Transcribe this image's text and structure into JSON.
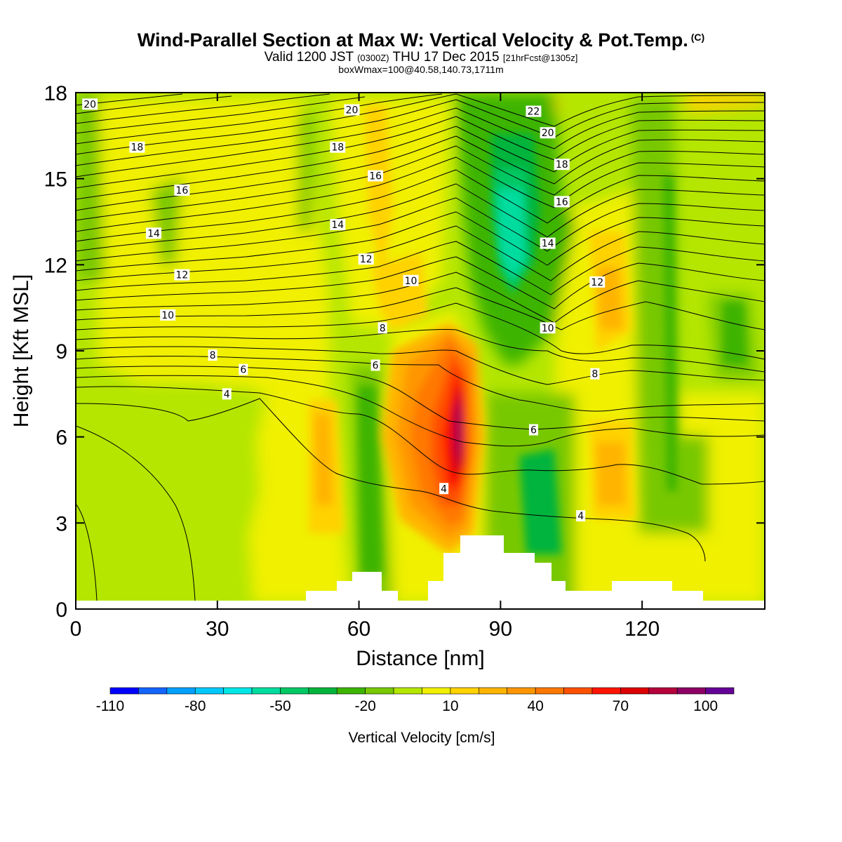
{
  "header": {
    "title": "Wind-Parallel Section at Max W: Vertical Velocity & Pot.Temp.",
    "copyright": "(C)",
    "valid_prefix": "Valid 1200 JST",
    "valid_utc": "(0300Z)",
    "valid_date": "THU 17 Dec 2015",
    "forecast": "[21hrFcst@1305z]",
    "box_info": "boxWmax=100@40.58,140.73,1711m"
  },
  "colorbar": {
    "label": "Vertical Velocity [cm/s]",
    "tick_labels": [
      "-110",
      "-80",
      "-50",
      "-20",
      "10",
      "40",
      "70",
      "100"
    ],
    "colors": [
      "#0000ff",
      "#1464ff",
      "#00a0ff",
      "#00c8ff",
      "#00e6e6",
      "#00dca0",
      "#00c864",
      "#00b43c",
      "#3cb400",
      "#78c800",
      "#b4e600",
      "#f0f000",
      "#ffd200",
      "#ffb400",
      "#ff9600",
      "#ff7800",
      "#ff5000",
      "#ff1400",
      "#dc0000",
      "#b4003c",
      "#8c0064",
      "#640096"
    ]
  },
  "chart_data": {
    "type": "heatmap",
    "title": "Wind-Parallel Section at Max W: Vertical Velocity & Pot.Temp.",
    "xlabel": "Distance [nm]",
    "ylabel": "Height [Kft MSL]",
    "xlim": [
      0,
      146
    ],
    "ylim": [
      0,
      18
    ],
    "x_ticks": [
      0,
      30,
      60,
      90,
      120
    ],
    "y_ticks": [
      0,
      3,
      6,
      9,
      12,
      15,
      18
    ],
    "x_tick_labels": [
      "0",
      "30",
      "60",
      "90",
      "120"
    ],
    "y_tick_labels": [
      "0",
      "3",
      "6",
      "9",
      "12",
      "15",
      "18"
    ],
    "fill_variable": "Vertical Velocity [cm/s]",
    "fill_levels": [
      -110,
      -100,
      -90,
      -80,
      -70,
      -60,
      -50,
      -40,
      -30,
      -20,
      -10,
      0,
      10,
      20,
      30,
      40,
      50,
      60,
      70,
      80,
      90,
      100,
      110
    ],
    "max_value": 100,
    "max_location": {
      "x": 80.5,
      "y": 7
    },
    "contour_variable": "Pot.Temp. (C)",
    "contour_levels": [
      4,
      6,
      8,
      10,
      12,
      14,
      16,
      18,
      20,
      22
    ],
    "contour_labels": [
      {
        "text": "20",
        "x": 3,
        "y": 17.6
      },
      {
        "text": "20",
        "x": 58.5,
        "y": 17.4
      },
      {
        "text": "22",
        "x": 97,
        "y": 17.35
      },
      {
        "text": "18",
        "x": 13,
        "y": 16.1
      },
      {
        "text": "18",
        "x": 55.5,
        "y": 16.1
      },
      {
        "text": "20",
        "x": 100,
        "y": 16.6
      },
      {
        "text": "18",
        "x": 103,
        "y": 15.5
      },
      {
        "text": "16",
        "x": 22.5,
        "y": 14.6
      },
      {
        "text": "16",
        "x": 63.5,
        "y": 15.1
      },
      {
        "text": "16",
        "x": 103,
        "y": 14.2
      },
      {
        "text": "14",
        "x": 16.5,
        "y": 13.1
      },
      {
        "text": "14",
        "x": 55.5,
        "y": 13.4
      },
      {
        "text": "14",
        "x": 100,
        "y": 12.75
      },
      {
        "text": "12",
        "x": 22.5,
        "y": 11.65
      },
      {
        "text": "12",
        "x": 61.5,
        "y": 12.2
      },
      {
        "text": "12",
        "x": 110.5,
        "y": 11.4
      },
      {
        "text": "10",
        "x": 19.5,
        "y": 10.25
      },
      {
        "text": "10",
        "x": 71,
        "y": 11.45
      },
      {
        "text": "10",
        "x": 100,
        "y": 9.8
      },
      {
        "text": "8",
        "x": 29,
        "y": 8.85
      },
      {
        "text": "8",
        "x": 65,
        "y": 9.8
      },
      {
        "text": "8",
        "x": 110,
        "y": 8.2
      },
      {
        "text": "6",
        "x": 35.5,
        "y": 8.35
      },
      {
        "text": "6",
        "x": 63.5,
        "y": 8.5
      },
      {
        "text": "6",
        "x": 97,
        "y": 6.25
      },
      {
        "text": "4",
        "x": 32,
        "y": 7.5
      },
      {
        "text": "4",
        "x": 78,
        "y": 4.2
      },
      {
        "text": "4",
        "x": 107,
        "y": 3.25
      }
    ],
    "grid": false,
    "legend": "colorbar-bottom"
  }
}
